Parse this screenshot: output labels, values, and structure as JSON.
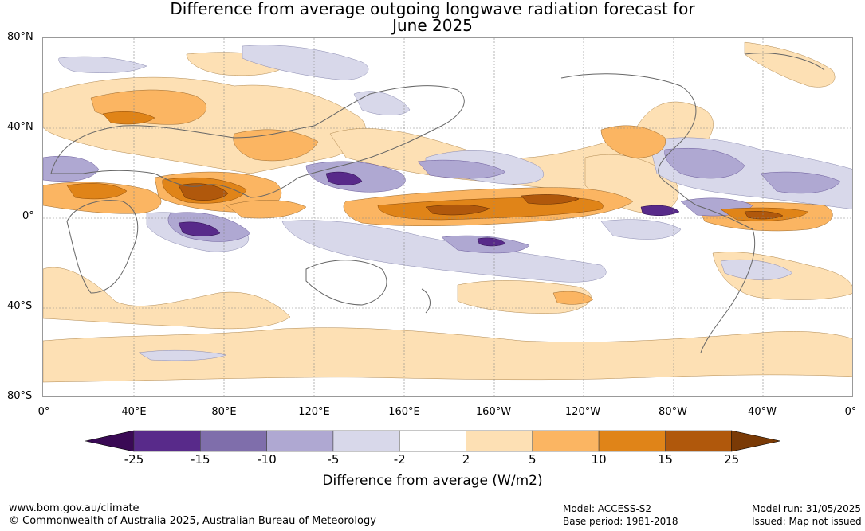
{
  "title": {
    "line1": "Difference from average outgoing longwave radiation forecast for",
    "line2": "June 2025"
  },
  "axes": {
    "lat_labels": [
      "80°N",
      "40°N",
      "0°",
      "40°S",
      "80°S"
    ],
    "lon_labels": [
      "0°",
      "40°E",
      "80°E",
      "120°E",
      "160°E",
      "160°W",
      "120°W",
      "80°W",
      "40°W",
      "0°"
    ]
  },
  "legend": {
    "label": "Difference from average (W/m2)",
    "ticks": [
      "-25",
      "-15",
      "-10",
      "-5",
      "-2",
      "2",
      "5",
      "10",
      "15",
      "25"
    ],
    "colors": [
      "#3a0a55",
      "#582a8a",
      "#7f6eab",
      "#afa8d2",
      "#d8d8ea",
      "#ffffff",
      "#fde0b4",
      "#fbb562",
      "#e08418",
      "#b0580c",
      "#7a3a06"
    ]
  },
  "footer": {
    "website": "www.bom.gov.au/climate",
    "copyright": "© Commonwealth of Australia 2025, Australian Bureau of Meteorology",
    "model": "Model: ACCESS-S2",
    "base_period": "Base period: 1981-2018",
    "model_run": "Model run: 31/05/2025",
    "issued": "Issued: Map not issued"
  }
}
